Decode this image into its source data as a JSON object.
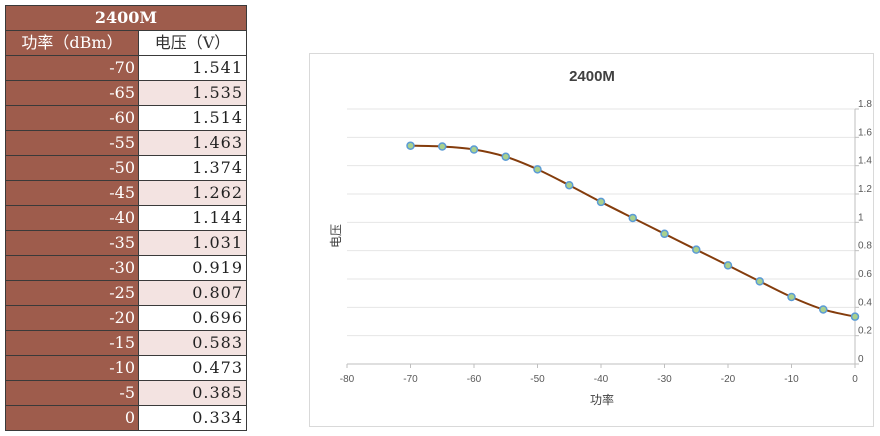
{
  "table": {
    "title": "2400M",
    "header_power": "功率（dBm）",
    "header_voltage": "电压（V）",
    "rows": [
      {
        "power": "-70",
        "voltage": "1.541"
      },
      {
        "power": "-65",
        "voltage": "1.535"
      },
      {
        "power": "-60",
        "voltage": "1.514"
      },
      {
        "power": "-55",
        "voltage": "1.463"
      },
      {
        "power": "-50",
        "voltage": "1.374"
      },
      {
        "power": "-45",
        "voltage": "1.262"
      },
      {
        "power": "-40",
        "voltage": "1.144"
      },
      {
        "power": "-35",
        "voltage": "1.031"
      },
      {
        "power": "-30",
        "voltage": "0.919"
      },
      {
        "power": "-25",
        "voltage": "0.807"
      },
      {
        "power": "-20",
        "voltage": "0.696"
      },
      {
        "power": "-15",
        "voltage": "0.583"
      },
      {
        "power": "-10",
        "voltage": "0.473"
      },
      {
        "power": "-5",
        "voltage": "0.385"
      },
      {
        "power": "0",
        "voltage": "0.334"
      }
    ]
  },
  "chart_data": {
    "type": "scatter",
    "title": "2400M",
    "xlabel": "功率",
    "ylabel": "电压",
    "x": [
      -70,
      -65,
      -60,
      -55,
      -50,
      -45,
      -40,
      -35,
      -30,
      -25,
      -20,
      -15,
      -10,
      -5,
      0
    ],
    "series": [
      {
        "values": [
          1.541,
          1.535,
          1.514,
          1.463,
          1.374,
          1.262,
          1.144,
          1.031,
          0.919,
          0.807,
          0.696,
          0.583,
          0.473,
          0.385,
          0.334
        ]
      }
    ],
    "xlim": [
      -80,
      0
    ],
    "ylim": [
      0,
      1.8
    ],
    "xticks": [
      "-80",
      "-70",
      "-60",
      "-50",
      "-40",
      "-30",
      "-20",
      "-10",
      "0"
    ],
    "yticks": [
      "0",
      "0.2",
      "0.4",
      "0.6",
      "0.8",
      "1",
      "1.2",
      "1.4",
      "1.6",
      "1.8"
    ],
    "y_axis_position": "right",
    "grid": "horizontal",
    "legend": "none",
    "line_color": "#843c0c",
    "marker_color": "#5b9bd5",
    "marker_fill": "#a9d18e"
  }
}
